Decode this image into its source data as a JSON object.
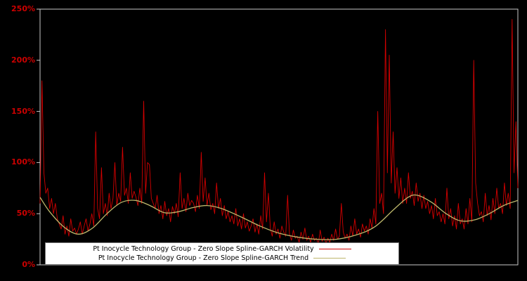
{
  "chart_data": {
    "type": "line",
    "title": "",
    "background": "#000000",
    "plot_border_color": "#c8c8c8",
    "tick_label_color": "#cc0000",
    "legend_position": "bottom-center",
    "y_axis": {
      "unit": "percent",
      "range": [
        0,
        250
      ],
      "ticks": [
        {
          "value": 0,
          "label": "0%"
        },
        {
          "value": 50,
          "label": "50%"
        },
        {
          "value": 100,
          "label": "100%"
        },
        {
          "value": 150,
          "label": "150%"
        },
        {
          "value": 200,
          "label": "200%"
        },
        {
          "value": 250,
          "label": "250%"
        }
      ]
    },
    "x_axis": {
      "range": [
        0,
        1
      ],
      "ticks": []
    },
    "series": [
      {
        "name": "Pt Inocycle Technology Group - Zero Slope Spline-GARCH Volatility",
        "color": "#d40000",
        "style": "spiky-line",
        "values": [
          60,
          180,
          90,
          70,
          75,
          55,
          65,
          50,
          60,
          45,
          40,
          35,
          48,
          30,
          38,
          28,
          45,
          33,
          36,
          30,
          35,
          42,
          30,
          38,
          45,
          33,
          40,
          50,
          38,
          130,
          55,
          45,
          95,
          50,
          60,
          48,
          70,
          55,
          65,
          100,
          58,
          70,
          62,
          115,
          68,
          75,
          60,
          90,
          65,
          72,
          66,
          58,
          75,
          60,
          160,
          70,
          100,
          98,
          65,
          60,
          55,
          68,
          50,
          58,
          45,
          62,
          48,
          55,
          42,
          57,
          50,
          60,
          47,
          90,
          55,
          65,
          52,
          70,
          58,
          63,
          60,
          52,
          68,
          55,
          110,
          62,
          85,
          58,
          70,
          54,
          60,
          50,
          80,
          55,
          65,
          48,
          58,
          45,
          52,
          42,
          48,
          40,
          55,
          38,
          45,
          35,
          50,
          36,
          42,
          33,
          38,
          45,
          32,
          40,
          30,
          48,
          35,
          90,
          42,
          70,
          36,
          28,
          42,
          30,
          35,
          26,
          38,
          32,
          28,
          68,
          30,
          24,
          34,
          26,
          28,
          22,
          32,
          25,
          36,
          24,
          28,
          22,
          30,
          24,
          26,
          20,
          34,
          23,
          27,
          21,
          26,
          22,
          30,
          24,
          35,
          25,
          28,
          60,
          32,
          26,
          30,
          24,
          38,
          28,
          45,
          30,
          35,
          27,
          40,
          33,
          38,
          30,
          45,
          36,
          55,
          40,
          150,
          60,
          70,
          50,
          230,
          90,
          205,
          80,
          130,
          70,
          95,
          65,
          85,
          60,
          75,
          60,
          90,
          65,
          72,
          58,
          80,
          62,
          70,
          55,
          68,
          55,
          62,
          50,
          58,
          45,
          65,
          48,
          52,
          42,
          50,
          40,
          75,
          45,
          55,
          38,
          48,
          35,
          60,
          40,
          45,
          35,
          55,
          40,
          65,
          42,
          200,
          80,
          60,
          48,
          52,
          42,
          70,
          48,
          58,
          44,
          65,
          50,
          75,
          55,
          60,
          50,
          80,
          58,
          70,
          55,
          240,
          90,
          140,
          75
        ]
      },
      {
        "name": "Pt Inocycle Technology Group - Zero Slope Spline-GARCH Trend",
        "color": "#bdb76b",
        "style": "smooth-line",
        "points": [
          [
            0.0,
            66
          ],
          [
            0.02,
            52
          ],
          [
            0.05,
            37
          ],
          [
            0.08,
            30
          ],
          [
            0.11,
            36
          ],
          [
            0.14,
            50
          ],
          [
            0.17,
            61
          ],
          [
            0.2,
            63
          ],
          [
            0.23,
            58
          ],
          [
            0.26,
            51
          ],
          [
            0.29,
            52
          ],
          [
            0.32,
            56
          ],
          [
            0.35,
            58
          ],
          [
            0.38,
            55
          ],
          [
            0.42,
            47
          ],
          [
            0.46,
            38
          ],
          [
            0.5,
            31
          ],
          [
            0.54,
            27
          ],
          [
            0.58,
            25
          ],
          [
            0.62,
            25
          ],
          [
            0.66,
            29
          ],
          [
            0.7,
            37
          ],
          [
            0.74,
            54
          ],
          [
            0.77,
            66
          ],
          [
            0.79,
            68
          ],
          [
            0.82,
            61
          ],
          [
            0.85,
            50
          ],
          [
            0.88,
            43
          ],
          [
            0.91,
            44
          ],
          [
            0.94,
            50
          ],
          [
            0.97,
            58
          ],
          [
            1.0,
            63
          ]
        ]
      }
    ]
  },
  "legend": {
    "volatility_label": "Pt Inocycle Technology Group - Zero Slope Spline-GARCH Volatility",
    "trend_label": "Pt Inocycle Technology Group - Zero Slope Spline-GARCH Trend"
  }
}
